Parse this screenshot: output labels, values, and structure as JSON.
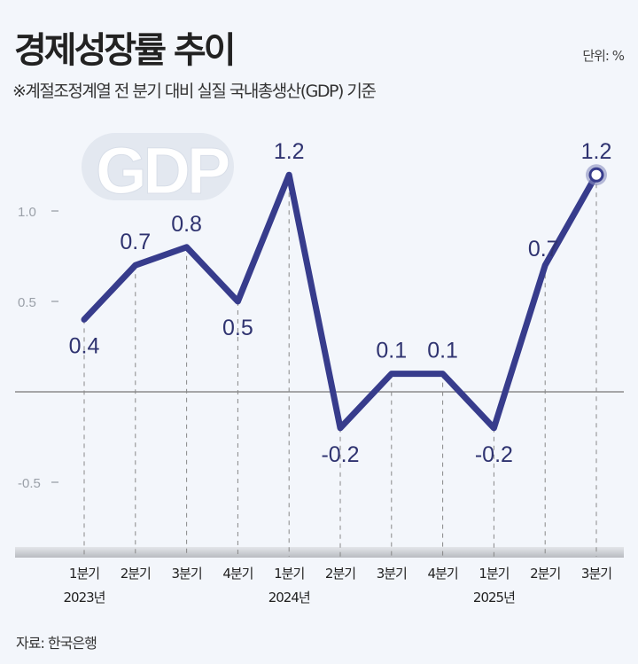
{
  "title": "경제성장률 추이",
  "unit_label": "단위: %",
  "subtitle": "※계절조정계열 전 분기 대비 실질 국내총생산(GDP) 기준",
  "source": "자료: 한국은행",
  "watermark": "GDP",
  "colors": {
    "line": "#373c8c",
    "background": "#f3f6fb",
    "zero_line": "#777777"
  },
  "chart_data": {
    "type": "line",
    "title": "경제성장률 추이",
    "xlabel": "",
    "ylabel": "",
    "ylim": [
      -0.9,
      1.5
    ],
    "yticks": [
      {
        "value": 1.0,
        "label": "1.0"
      },
      {
        "value": 0.5,
        "label": "0.5"
      },
      {
        "value": -0.5,
        "label": "-0.5"
      }
    ],
    "categories": [
      "1분기",
      "2분기",
      "3분기",
      "4분기",
      "1분기",
      "2분기",
      "3분기",
      "4분기",
      "1분기",
      "2분기",
      "3분기"
    ],
    "years": [
      {
        "index": 0,
        "label": "2023년"
      },
      {
        "index": 4,
        "label": "2024년"
      },
      {
        "index": 8,
        "label": "2025년"
      }
    ],
    "values": [
      0.4,
      0.7,
      0.8,
      0.5,
      1.2,
      -0.2,
      0.1,
      0.1,
      -0.2,
      0.7,
      1.2
    ],
    "value_labels": [
      "0.4",
      "0.7",
      "0.8",
      "0.5",
      "1.2",
      "-0.2",
      "0.1",
      "0.1",
      "-0.2",
      "0.7",
      "1.2"
    ],
    "highlight_last": true,
    "grid": false
  }
}
